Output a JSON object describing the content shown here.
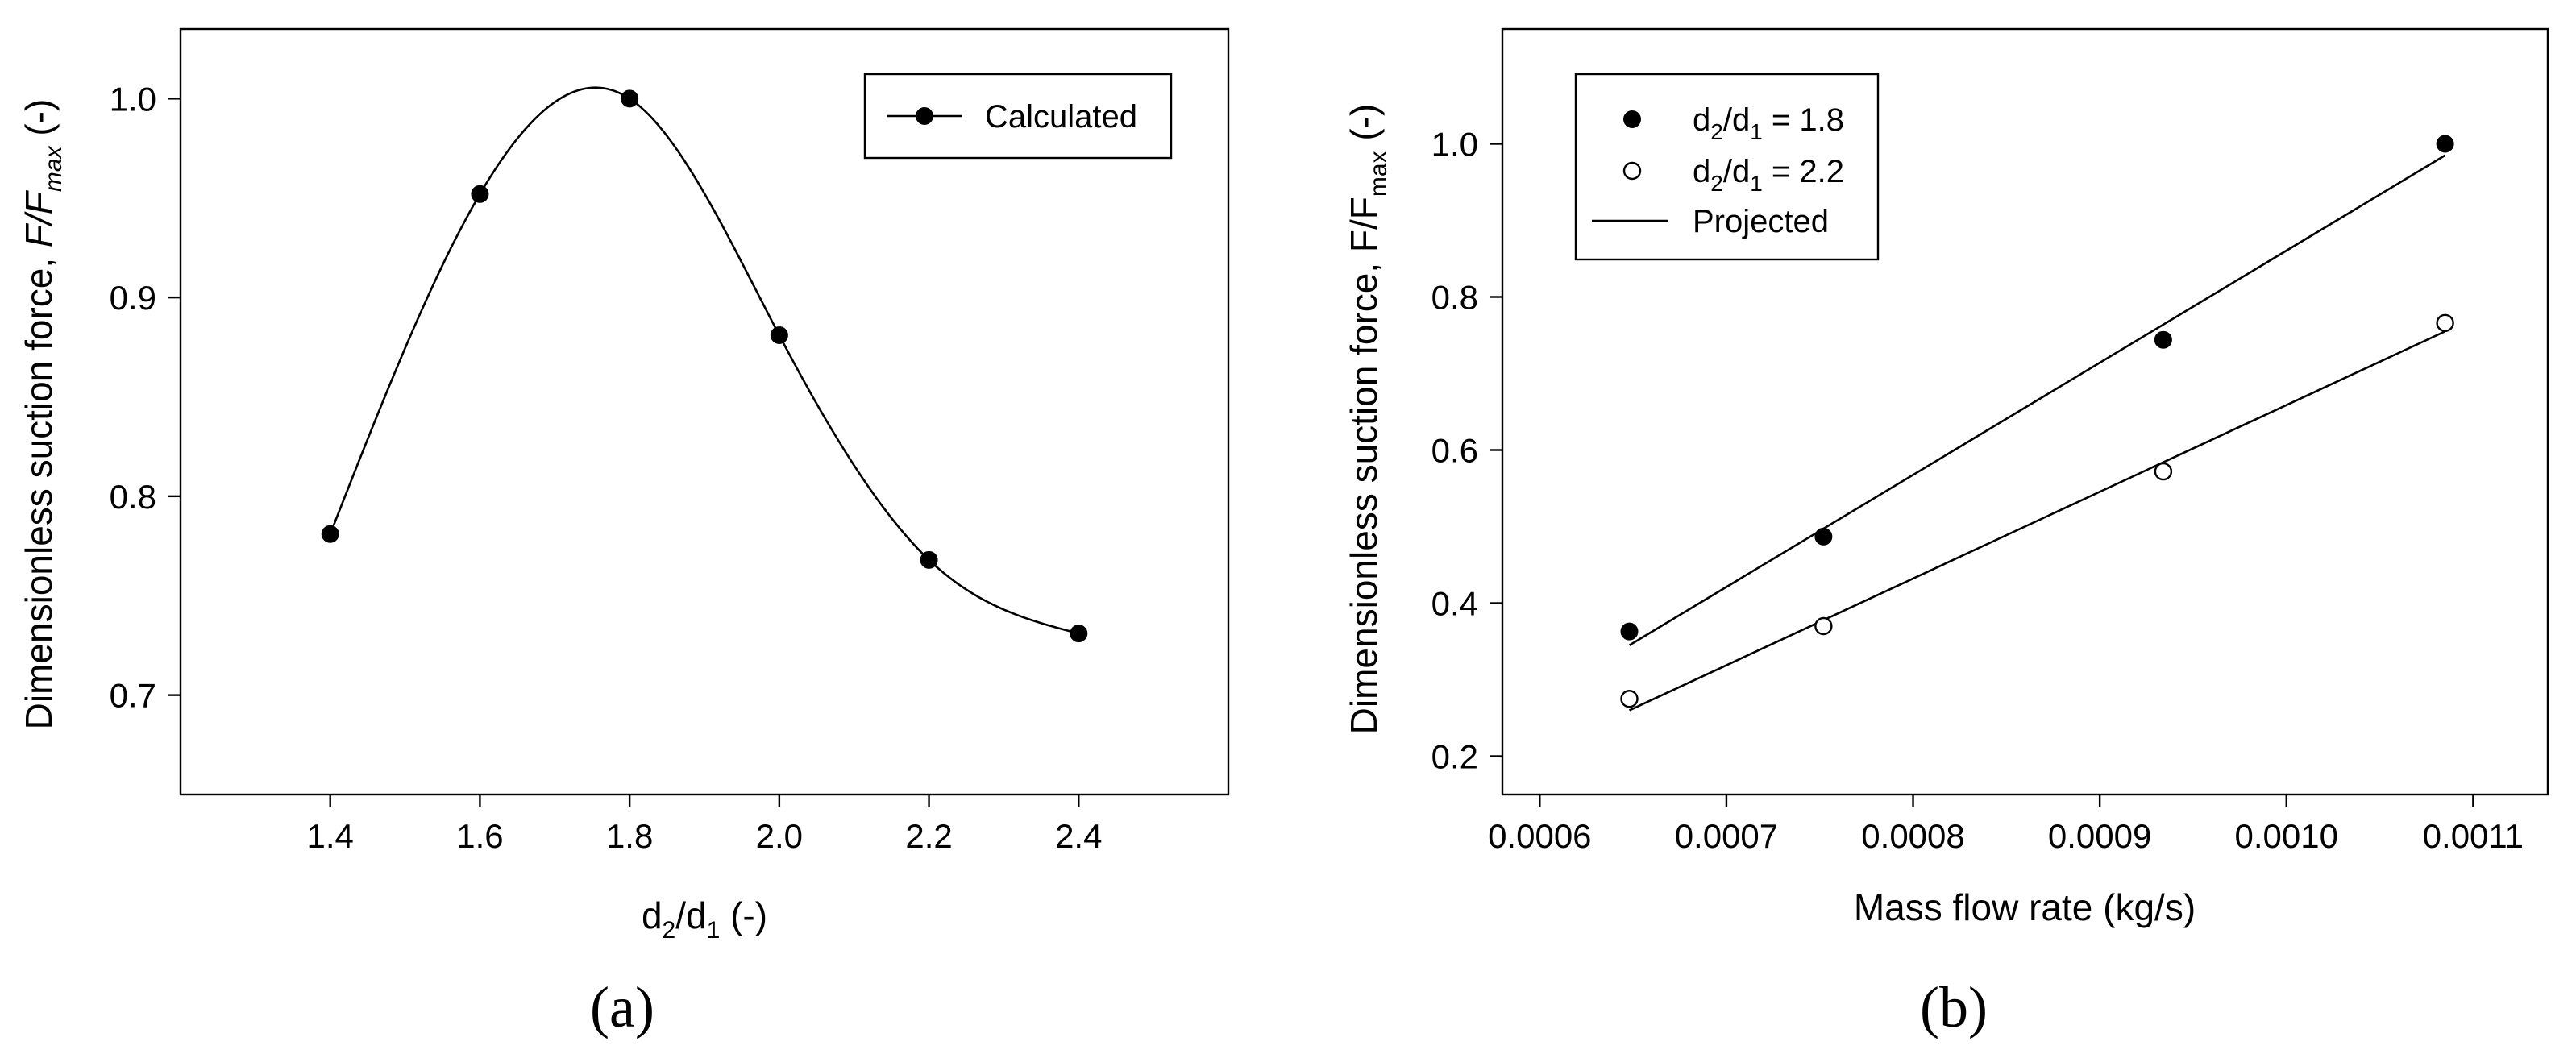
{
  "chart_data": [
    {
      "type": "line",
      "panel": "(a)",
      "xlabel": {
        "main": "d",
        "sub1": "2",
        "mid": "/d",
        "sub2": "1",
        "tail": " (-)"
      },
      "ylabel": {
        "main": "Dimensionless suction force, ",
        "italic": "F/F",
        "sub": "max",
        "tail": " (-)"
      },
      "xlim": [
        1.2,
        2.6
      ],
      "ylim": [
        0.65,
        1.035
      ],
      "xticks": [
        1.4,
        1.6,
        1.8,
        2.0,
        2.2,
        2.4
      ],
      "xtick_labels": [
        "1.4",
        "1.6",
        "1.8",
        "2.0",
        "2.2",
        "2.4"
      ],
      "yticks": [
        0.7,
        0.8,
        0.9,
        1.0
      ],
      "ytick_labels": [
        "0.7",
        "0.8",
        "0.9",
        "1.0"
      ],
      "legend": {
        "label": "Calculated",
        "position": "top-right"
      },
      "series": [
        {
          "name": "Calculated",
          "marker": "filled-circle",
          "smooth": true,
          "x": [
            1.4,
            1.6,
            1.8,
            2.0,
            2.2,
            2.4
          ],
          "y": [
            0.781,
            0.952,
            1.0,
            0.881,
            0.768,
            0.731
          ]
        }
      ]
    },
    {
      "type": "scatter",
      "panel": "(b)",
      "xlabel": "Mass flow rate (kg/s)",
      "ylabel": {
        "main": "Dimensionless suction force, F/F",
        "sub": "max",
        "tail": "  (-)"
      },
      "xlim": [
        0.00058,
        0.00114
      ],
      "ylim": [
        0.15,
        1.15
      ],
      "xticks": [
        0.0006,
        0.0007,
        0.0008,
        0.0009,
        0.001,
        0.0011
      ],
      "xtick_labels": [
        "0.0006",
        "0.0007",
        "0.0008",
        "0.0009",
        "0.0010",
        "0.0011"
      ],
      "yticks": [
        0.2,
        0.4,
        0.6,
        0.8,
        1.0
      ],
      "ytick_labels": [
        "0.2",
        "0.4",
        "0.6",
        "0.8",
        "1.0"
      ],
      "legend": {
        "position": "top-left",
        "entries": [
          {
            "main": "d",
            "sub1": "2",
            "mid": "/d",
            "sub2": "1",
            "tail": " = 1.8",
            "marker": "filled-circle"
          },
          {
            "main": "d",
            "sub1": "2",
            "mid": "/d",
            "sub2": "1",
            "tail": " = 2.2",
            "marker": "open-circle"
          },
          {
            "text": "Projected",
            "marker": "line"
          }
        ]
      },
      "series": [
        {
          "name": "d2/d1 = 1.8",
          "marker": "filled-circle",
          "x": [
            0.000648,
            0.000752,
            0.000934,
            0.001085
          ],
          "y": [
            0.363,
            0.487,
            0.744,
            1.0
          ]
        },
        {
          "name": "d2/d1 = 2.2",
          "marker": "open-circle",
          "x": [
            0.000648,
            0.000752,
            0.000934,
            0.001085
          ],
          "y": [
            0.275,
            0.37,
            0.572,
            0.766
          ]
        }
      ],
      "projected": [
        {
          "name": "Projected (d2/d1 = 1.8)",
          "x": [
            0.000648,
            0.001085
          ],
          "y": [
            0.345,
            0.985
          ]
        },
        {
          "name": "Projected (d2/d1 = 2.2)",
          "x": [
            0.000648,
            0.001085
          ],
          "y": [
            0.26,
            0.755
          ]
        }
      ]
    }
  ]
}
